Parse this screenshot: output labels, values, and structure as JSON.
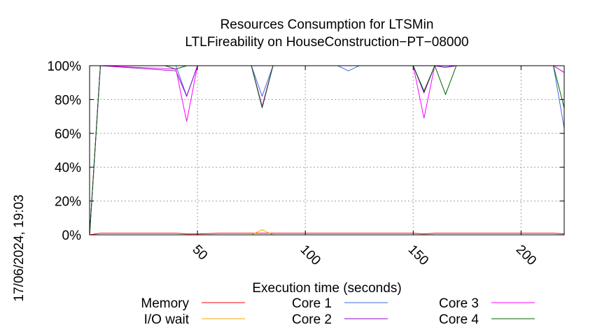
{
  "chart_data": {
    "type": "line",
    "title": "Resources Consumption for LTSMin",
    "subtitle": "LTLFireability on HouseConstruction−PT−08000",
    "xlabel": "Execution time (seconds)",
    "ylabel": "",
    "xlim": [
      0,
      220
    ],
    "ylim": [
      0,
      100
    ],
    "xticks": [
      50,
      100,
      150,
      200
    ],
    "yticks": [
      0,
      20,
      40,
      60,
      80,
      100
    ],
    "ytick_labels": [
      "0%",
      "20%",
      "40%",
      "60%",
      "80%",
      "100%"
    ],
    "grid": true,
    "legend_position": "bottom",
    "timestamp": "17/06/2024, 19:03",
    "series": [
      {
        "name": "Memory",
        "color": "#ff0000",
        "points": [
          [
            0,
            0
          ],
          [
            5,
            1
          ],
          [
            10,
            1
          ],
          [
            20,
            1
          ],
          [
            40,
            1
          ],
          [
            45,
            0.5
          ],
          [
            50,
            0.5
          ],
          [
            60,
            1
          ],
          [
            80,
            1
          ],
          [
            100,
            1
          ],
          [
            120,
            1
          ],
          [
            140,
            1
          ],
          [
            150,
            1
          ],
          [
            155,
            0.5
          ],
          [
            160,
            1
          ],
          [
            180,
            1
          ],
          [
            200,
            1
          ],
          [
            215,
            1
          ],
          [
            220,
            0.5
          ]
        ]
      },
      {
        "name": "I/O wait",
        "color": "#ffa500",
        "points": [
          [
            0,
            0
          ],
          [
            5,
            0
          ],
          [
            75,
            0
          ],
          [
            80,
            3
          ],
          [
            85,
            0
          ],
          [
            150,
            0
          ],
          [
            220,
            0
          ]
        ]
      },
      {
        "name": "Core 1",
        "color": "#4169e1",
        "points": [
          [
            0,
            0
          ],
          [
            5,
            100
          ],
          [
            40,
            100
          ],
          [
            45,
            82
          ],
          [
            50,
            100
          ],
          [
            75,
            100
          ],
          [
            80,
            82
          ],
          [
            85,
            100
          ],
          [
            115,
            100
          ],
          [
            120,
            97
          ],
          [
            125,
            100
          ],
          [
            150,
            100
          ],
          [
            155,
            84
          ],
          [
            160,
            100
          ],
          [
            165,
            99
          ],
          [
            170,
            100
          ],
          [
            215,
            100
          ],
          [
            220,
            63
          ]
        ]
      },
      {
        "name": "Core 2",
        "color": "#9400d3",
        "points": [
          [
            0,
            0
          ],
          [
            5,
            100
          ],
          [
            40,
            97
          ],
          [
            45,
            82
          ],
          [
            50,
            100
          ],
          [
            75,
            100
          ],
          [
            80,
            76
          ],
          [
            85,
            100
          ],
          [
            150,
            100
          ],
          [
            155,
            84
          ],
          [
            160,
            100
          ],
          [
            165,
            99
          ],
          [
            170,
            100
          ],
          [
            215,
            100
          ],
          [
            220,
            96
          ]
        ]
      },
      {
        "name": "Core 3",
        "color": "#ff00ff",
        "points": [
          [
            0,
            0
          ],
          [
            5,
            100
          ],
          [
            40,
            98
          ],
          [
            45,
            67
          ],
          [
            50,
            100
          ],
          [
            75,
            100
          ],
          [
            80,
            76
          ],
          [
            85,
            100
          ],
          [
            150,
            100
          ],
          [
            155,
            69
          ],
          [
            160,
            100
          ],
          [
            215,
            100
          ],
          [
            220,
            96
          ]
        ]
      },
      {
        "name": "Core 4",
        "color": "#006400",
        "points": [
          [
            0,
            0
          ],
          [
            5,
            100
          ],
          [
            35,
            100
          ],
          [
            40,
            98
          ],
          [
            45,
            100
          ],
          [
            50,
            100
          ],
          [
            75,
            100
          ],
          [
            80,
            75
          ],
          [
            85,
            100
          ],
          [
            150,
            100
          ],
          [
            155,
            85
          ],
          [
            160,
            100
          ],
          [
            165,
            83
          ],
          [
            170,
            100
          ],
          [
            215,
            100
          ],
          [
            220,
            75
          ]
        ]
      }
    ]
  }
}
